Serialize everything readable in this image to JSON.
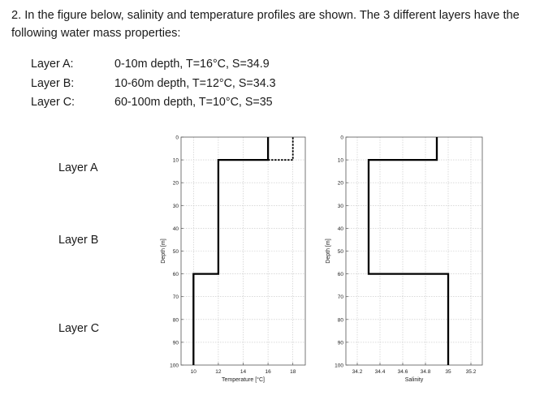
{
  "question": {
    "text": "2. In the figure below, salinity and temperature profiles are shown. The 3 different layers have the following water mass properties:"
  },
  "layer_properties": [
    {
      "name": "Layer A:",
      "desc": "0-10m depth, T=16°C, S=34.9"
    },
    {
      "name": "Layer B:",
      "desc": "10-60m depth, T=12°C, S=34.3"
    },
    {
      "name": "Layer C:",
      "desc": "60-100m depth, T=10°C, S=35"
    }
  ],
  "side_labels": [
    "Layer A",
    "Layer B",
    "Layer C"
  ],
  "chart_data": [
    {
      "type": "line",
      "xlabel": "Temperature [°C]",
      "ylabel": "Depth [m]",
      "xlim": [
        9,
        19
      ],
      "ylim": [
        0,
        100
      ],
      "y_inverted": true,
      "grid": true,
      "x_ticks": [
        "10",
        "12",
        "14",
        "16",
        "18"
      ],
      "x_tick_values": [
        10,
        12,
        14,
        16,
        18
      ],
      "y_ticks": [
        "0",
        "10",
        "20",
        "30",
        "40",
        "50",
        "60",
        "70",
        "80",
        "90",
        "100"
      ],
      "y_tick_values": [
        0,
        10,
        20,
        30,
        40,
        50,
        60,
        70,
        80,
        90,
        100
      ],
      "series": [
        {
          "style": "solid",
          "x": [
            16,
            16,
            12,
            12,
            10,
            10
          ],
          "y": [
            0,
            10,
            10,
            60,
            60,
            100
          ]
        },
        {
          "style": "dashed",
          "x": [
            16,
            18,
            18
          ],
          "y": [
            10,
            10,
            0
          ]
        }
      ]
    },
    {
      "type": "line",
      "xlabel": "Salinity",
      "ylabel": "Depth [m]",
      "xlim": [
        34.1,
        35.3
      ],
      "ylim": [
        0,
        100
      ],
      "y_inverted": true,
      "grid": true,
      "x_ticks": [
        "34.2",
        "34.4",
        "34.6",
        "34.8",
        "35",
        "35.2"
      ],
      "x_tick_values": [
        34.2,
        34.4,
        34.6,
        34.8,
        35,
        35.2
      ],
      "y_ticks": [
        "0",
        "10",
        "20",
        "30",
        "40",
        "50",
        "60",
        "70",
        "80",
        "90",
        "100"
      ],
      "y_tick_values": [
        0,
        10,
        20,
        30,
        40,
        50,
        60,
        70,
        80,
        90,
        100
      ],
      "series": [
        {
          "style": "solid",
          "x": [
            34.9,
            34.9,
            34.3,
            34.3,
            35,
            35
          ],
          "y": [
            0,
            10,
            10,
            60,
            60,
            100
          ]
        }
      ]
    }
  ]
}
